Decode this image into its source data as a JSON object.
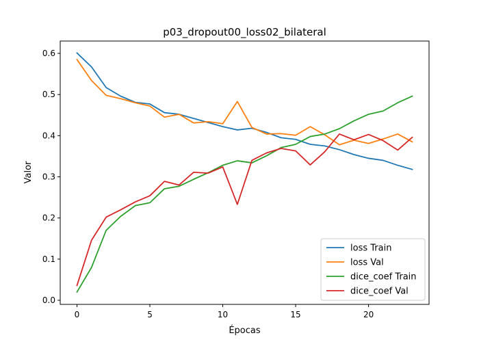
{
  "chart_data": {
    "type": "line",
    "title": "p03_dropout00_loss02_bilateral",
    "xlabel": "Épocas",
    "ylabel": "Valor",
    "x": [
      0,
      1,
      2,
      3,
      4,
      5,
      6,
      7,
      8,
      9,
      10,
      11,
      12,
      13,
      14,
      15,
      16,
      17,
      18,
      19,
      20,
      21,
      22,
      23
    ],
    "xlim": [
      -1.15,
      24.15
    ],
    "ylim": [
      -0.01,
      0.63
    ],
    "xticks": [
      0,
      5,
      10,
      15,
      20
    ],
    "yticks": [
      0.0,
      0.1,
      0.2,
      0.3,
      0.4,
      0.5,
      0.6
    ],
    "ytick_labels": [
      "0.0",
      "0.1",
      "0.2",
      "0.3",
      "0.4",
      "0.5",
      "0.6"
    ],
    "grid": false,
    "legend_position": "bottom-right",
    "series": [
      {
        "name": "loss Train",
        "color": "#1f77b4",
        "values": [
          0.601,
          0.567,
          0.517,
          0.496,
          0.481,
          0.477,
          0.456,
          0.452,
          0.442,
          0.432,
          0.422,
          0.414,
          0.418,
          0.408,
          0.395,
          0.391,
          0.379,
          0.375,
          0.366,
          0.354,
          0.345,
          0.34,
          0.328,
          0.318
        ]
      },
      {
        "name": "loss Val",
        "color": "#ff7f0e",
        "values": [
          0.585,
          0.534,
          0.498,
          0.49,
          0.48,
          0.472,
          0.445,
          0.452,
          0.431,
          0.434,
          0.429,
          0.483,
          0.42,
          0.404,
          0.405,
          0.401,
          0.422,
          0.402,
          0.378,
          0.389,
          0.381,
          0.392,
          0.404,
          0.385
        ]
      },
      {
        "name": "dice_coef Train",
        "color": "#2ca02c",
        "values": [
          0.02,
          0.08,
          0.17,
          0.204,
          0.23,
          0.237,
          0.271,
          0.277,
          0.294,
          0.31,
          0.328,
          0.339,
          0.334,
          0.351,
          0.371,
          0.379,
          0.398,
          0.404,
          0.417,
          0.436,
          0.452,
          0.46,
          0.48,
          0.496
        ]
      },
      {
        "name": "dice_coef Val",
        "color": "#d62728",
        "values": [
          0.036,
          0.146,
          0.202,
          0.22,
          0.239,
          0.254,
          0.289,
          0.28,
          0.311,
          0.309,
          0.324,
          0.233,
          0.34,
          0.358,
          0.369,
          0.363,
          0.329,
          0.361,
          0.404,
          0.39,
          0.403,
          0.388,
          0.365,
          0.396
        ]
      }
    ]
  }
}
